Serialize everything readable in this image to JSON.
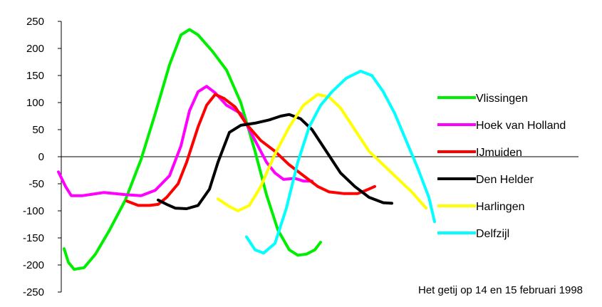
{
  "chart_data": {
    "type": "line",
    "title": "",
    "xlabel": "",
    "ylabel": "",
    "ylim": [
      -250,
      250
    ],
    "yticks": [
      250,
      200,
      150,
      100,
      50,
      0,
      -50,
      -100,
      -150,
      -200,
      -250
    ],
    "grid": false,
    "zero_line": true,
    "legend_position": "right",
    "annotation": "Het getij op 14 en 15 februari 1998",
    "series": [
      {
        "name": "Vlissingen",
        "color": "#00ee00",
        "points": [
          [
            0.2,
            -170
          ],
          [
            0.5,
            -195
          ],
          [
            0.9,
            -208
          ],
          [
            1.6,
            -205
          ],
          [
            2.4,
            -180
          ],
          [
            3.4,
            -135
          ],
          [
            4.5,
            -80
          ],
          [
            5.6,
            -5
          ],
          [
            6.6,
            80
          ],
          [
            7.6,
            170
          ],
          [
            8.4,
            225
          ],
          [
            9.0,
            235
          ],
          [
            9.6,
            225
          ],
          [
            10.6,
            195
          ],
          [
            11.6,
            160
          ],
          [
            12.6,
            100
          ],
          [
            13.6,
            10
          ],
          [
            14.4,
            -70
          ],
          [
            15.2,
            -135
          ],
          [
            16.0,
            -172
          ],
          [
            16.6,
            -182
          ],
          [
            17.2,
            -180
          ],
          [
            17.8,
            -172
          ],
          [
            18.2,
            -158
          ]
        ]
      },
      {
        "name": "Hoek van Holland",
        "color": "#ff00ff",
        "points": [
          [
            -0.2,
            -28
          ],
          [
            0.3,
            -55
          ],
          [
            0.7,
            -72
          ],
          [
            1.5,
            -72
          ],
          [
            3.0,
            -66
          ],
          [
            4.5,
            -70
          ],
          [
            5.6,
            -72
          ],
          [
            6.6,
            -62
          ],
          [
            7.6,
            -35
          ],
          [
            8.4,
            20
          ],
          [
            9.0,
            85
          ],
          [
            9.6,
            120
          ],
          [
            10.2,
            130
          ],
          [
            10.8,
            118
          ],
          [
            11.6,
            95
          ],
          [
            12.6,
            80
          ],
          [
            13.6,
            30
          ],
          [
            14.4,
            -10
          ],
          [
            15.0,
            -30
          ],
          [
            15.6,
            -42
          ],
          [
            16.4,
            -40
          ],
          [
            17.0,
            -45
          ],
          [
            17.6,
            -45
          ]
        ]
      },
      {
        "name": "IJmuiden",
        "color": "#ff0000",
        "points": [
          [
            4.6,
            -82
          ],
          [
            5.4,
            -90
          ],
          [
            6.2,
            -90
          ],
          [
            6.8,
            -88
          ],
          [
            7.4,
            -75
          ],
          [
            8.2,
            -50
          ],
          [
            8.8,
            -10
          ],
          [
            9.6,
            55
          ],
          [
            10.2,
            95
          ],
          [
            10.8,
            115
          ],
          [
            11.4,
            108
          ],
          [
            12.2,
            92
          ],
          [
            13.0,
            60
          ],
          [
            14.0,
            30
          ],
          [
            15.0,
            10
          ],
          [
            16.0,
            -15
          ],
          [
            17.0,
            -35
          ],
          [
            18.0,
            -55
          ],
          [
            18.8,
            -65
          ],
          [
            19.8,
            -68
          ],
          [
            20.8,
            -68
          ],
          [
            21.4,
            -62
          ],
          [
            22.0,
            -55
          ]
        ]
      },
      {
        "name": "Den Helder",
        "color": "#000000",
        "points": [
          [
            6.8,
            -80
          ],
          [
            7.4,
            -88
          ],
          [
            8.0,
            -95
          ],
          [
            8.8,
            -96
          ],
          [
            9.6,
            -90
          ],
          [
            10.4,
            -60
          ],
          [
            11.0,
            -10
          ],
          [
            11.8,
            45
          ],
          [
            12.6,
            58
          ],
          [
            13.6,
            62
          ],
          [
            14.6,
            68
          ],
          [
            15.4,
            75
          ],
          [
            16.0,
            78
          ],
          [
            16.8,
            70
          ],
          [
            17.6,
            50
          ],
          [
            18.6,
            10
          ],
          [
            19.6,
            -30
          ],
          [
            20.6,
            -55
          ],
          [
            21.6,
            -75
          ],
          [
            22.6,
            -85
          ],
          [
            23.2,
            -86
          ]
        ]
      },
      {
        "name": "Harlingen",
        "color": "#ffff00",
        "points": [
          [
            11.0,
            -78
          ],
          [
            11.8,
            -92
          ],
          [
            12.4,
            -100
          ],
          [
            13.2,
            -90
          ],
          [
            14.0,
            -55
          ],
          [
            15.0,
            5
          ],
          [
            16.0,
            55
          ],
          [
            17.0,
            95
          ],
          [
            18.0,
            115
          ],
          [
            18.8,
            110
          ],
          [
            19.6,
            90
          ],
          [
            20.6,
            50
          ],
          [
            21.6,
            10
          ],
          [
            22.6,
            -15
          ],
          [
            23.6,
            -40
          ],
          [
            24.6,
            -65
          ],
          [
            25.6,
            -95
          ]
        ]
      },
      {
        "name": "Delfzijl",
        "color": "#00ffff",
        "points": [
          [
            13.0,
            -148
          ],
          [
            13.6,
            -172
          ],
          [
            14.2,
            -178
          ],
          [
            15.0,
            -160
          ],
          [
            15.8,
            -95
          ],
          [
            16.6,
            -10
          ],
          [
            17.4,
            55
          ],
          [
            18.2,
            95
          ],
          [
            19.0,
            120
          ],
          [
            20.0,
            145
          ],
          [
            21.0,
            158
          ],
          [
            21.8,
            150
          ],
          [
            22.6,
            120
          ],
          [
            23.4,
            80
          ],
          [
            24.2,
            30
          ],
          [
            25.0,
            -20
          ],
          [
            25.8,
            -75
          ],
          [
            26.2,
            -120
          ]
        ]
      }
    ]
  }
}
